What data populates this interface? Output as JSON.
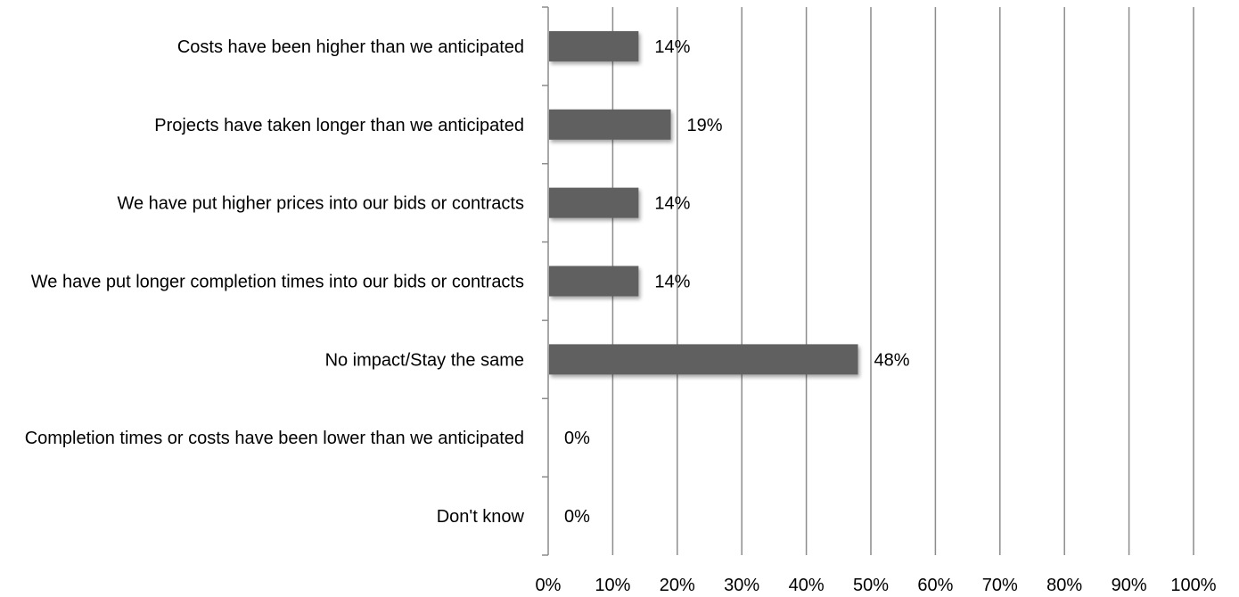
{
  "chart_data": {
    "type": "bar",
    "orientation": "horizontal",
    "categories": [
      "Costs have been higher than we anticipated",
      "Projects have taken longer than we anticipated",
      "We have put higher prices into our bids or contracts",
      "We have put longer completion times into our bids or contracts",
      "No impact/Stay the same",
      "Completion times or costs have been lower than we anticipated",
      "Don't know"
    ],
    "values": [
      14,
      19,
      14,
      14,
      48,
      0,
      0
    ],
    "value_labels": [
      "14%",
      "19%",
      "14%",
      "14%",
      "48%",
      "0%",
      "0%"
    ],
    "x_ticks": [
      "0%",
      "10%",
      "20%",
      "30%",
      "40%",
      "50%",
      "60%",
      "70%",
      "80%",
      "90%",
      "100%"
    ],
    "xlim": [
      0,
      100
    ],
    "title": "",
    "xlabel": "",
    "ylabel": "",
    "grid": true,
    "legend": "none",
    "bar_color": "#616161",
    "grid_color": "#8c8c8c"
  }
}
